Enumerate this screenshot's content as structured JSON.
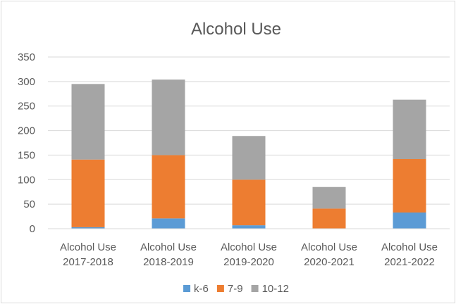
{
  "chart_data": {
    "type": "bar",
    "stacked": true,
    "title": "Alcohol Use",
    "categories": [
      [
        "Alcohol Use",
        "2017-2018"
      ],
      [
        "Alcohol Use",
        "2018-2019"
      ],
      [
        "Alcohol Use",
        "2019-2020"
      ],
      [
        "Alcohol Use",
        "2020-2021"
      ],
      [
        "Alcohol Use",
        "2021-2022"
      ]
    ],
    "series": [
      {
        "name": "k-6",
        "color": "#5b9bd5",
        "values": [
          3,
          21,
          7,
          0,
          33
        ]
      },
      {
        "name": "7-9",
        "color": "#ed7d31",
        "values": [
          138,
          129,
          93,
          41,
          109
        ]
      },
      {
        "name": "10-12",
        "color": "#a5a5a5",
        "values": [
          154,
          154,
          89,
          44,
          121
        ]
      }
    ],
    "ylim": [
      0,
      350
    ],
    "yticks": [
      "0",
      "50",
      "100",
      "150",
      "200",
      "250",
      "300",
      "350"
    ],
    "grid": true,
    "legend_position": "bottom"
  }
}
